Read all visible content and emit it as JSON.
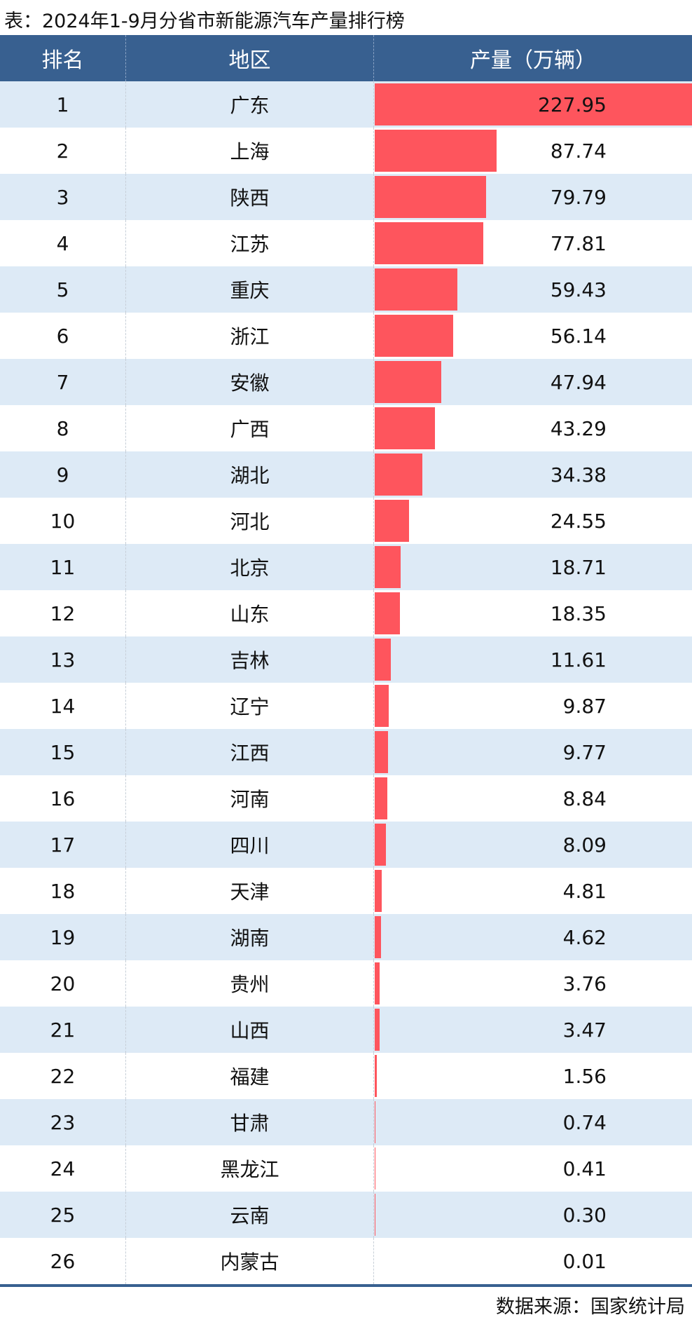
{
  "chart_data": {
    "type": "table",
    "title": "表：2024年1-9月分省市新能源汽车产量排行榜",
    "columns": [
      "排名",
      "地区",
      "产量（万辆）"
    ],
    "bar_color": "#fe555d",
    "header_color": "#386090",
    "rows": [
      {
        "rank": "1",
        "region": "广东",
        "value": "227.95"
      },
      {
        "rank": "2",
        "region": "上海",
        "value": "87.74"
      },
      {
        "rank": "3",
        "region": "陕西",
        "value": "79.79"
      },
      {
        "rank": "4",
        "region": "江苏",
        "value": "77.81"
      },
      {
        "rank": "5",
        "region": "重庆",
        "value": "59.43"
      },
      {
        "rank": "6",
        "region": "浙江",
        "value": "56.14"
      },
      {
        "rank": "7",
        "region": "安徽",
        "value": "47.94"
      },
      {
        "rank": "8",
        "region": "广西",
        "value": "43.29"
      },
      {
        "rank": "9",
        "region": "湖北",
        "value": "34.38"
      },
      {
        "rank": "10",
        "region": "河北",
        "value": "24.55"
      },
      {
        "rank": "11",
        "region": "北京",
        "value": "18.71"
      },
      {
        "rank": "12",
        "region": "山东",
        "value": "18.35"
      },
      {
        "rank": "13",
        "region": "吉林",
        "value": "11.61"
      },
      {
        "rank": "14",
        "region": "辽宁",
        "value": "9.87"
      },
      {
        "rank": "15",
        "region": "江西",
        "value": "9.77"
      },
      {
        "rank": "16",
        "region": "河南",
        "value": "8.84"
      },
      {
        "rank": "17",
        "region": "四川",
        "value": "8.09"
      },
      {
        "rank": "18",
        "region": "天津",
        "value": "4.81"
      },
      {
        "rank": "19",
        "region": "湖南",
        "value": "4.62"
      },
      {
        "rank": "20",
        "region": "贵州",
        "value": "3.76"
      },
      {
        "rank": "21",
        "region": "山西",
        "value": "3.47"
      },
      {
        "rank": "22",
        "region": "福建",
        "value": "1.56"
      },
      {
        "rank": "23",
        "region": "甘肃",
        "value": "0.74"
      },
      {
        "rank": "24",
        "region": "黑龙江",
        "value": "0.41"
      },
      {
        "rank": "25",
        "region": "云南",
        "value": "0.30"
      },
      {
        "rank": "26",
        "region": "内蒙古",
        "value": "0.01"
      }
    ],
    "source": "数据来源：国家统计局"
  }
}
